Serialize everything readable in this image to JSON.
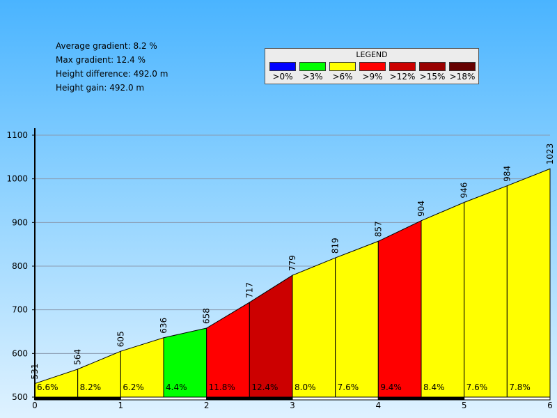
{
  "stats": {
    "avg_gradient": "Average gradient: 8.2 %",
    "max_gradient": "Max gradient: 12.4 %",
    "height_difference": "Height difference: 492.0 m",
    "height_gain": "Height gain: 492.0 m"
  },
  "legend": {
    "title": "LEGEND",
    "items": [
      {
        "label": ">0%",
        "color": "#0000ff"
      },
      {
        "label": ">3%",
        "color": "#00ff00"
      },
      {
        "label": ">6%",
        "color": "#ffff00"
      },
      {
        "label": ">9%",
        "color": "#ff0000"
      },
      {
        "label": ">12%",
        "color": "#cc0000"
      },
      {
        "label": ">15%",
        "color": "#990000"
      },
      {
        "label": ">18%",
        "color": "#660000"
      }
    ]
  },
  "chart_data": {
    "type": "area",
    "xlim": [
      0,
      6
    ],
    "ylim": [
      500,
      1100
    ],
    "x_ticks": [
      "0",
      "1",
      "2",
      "3",
      "4",
      "5",
      "6"
    ],
    "y_ticks": [
      "500",
      "600",
      "700",
      "800",
      "900",
      "1000",
      "1100"
    ],
    "grid": true,
    "x": [
      0,
      0.5,
      1,
      1.5,
      2,
      2.5,
      3,
      3.5,
      4,
      4.5,
      5,
      5.5,
      6
    ],
    "elevation": [
      531,
      564,
      605,
      636,
      658,
      717,
      779,
      819,
      857,
      904,
      946,
      984,
      1023
    ],
    "elevation_labels": [
      "531",
      "564",
      "605",
      "636",
      "658",
      "717",
      "779",
      "819",
      "857",
      "904",
      "946",
      "984",
      "1023"
    ],
    "segment_gradients": [
      "6.6%",
      "8.2%",
      "6.2%",
      "4.4%",
      "11.8%",
      "12.4%",
      "8.0%",
      "7.6%",
      "9.4%",
      "8.4%",
      "7.6%",
      "7.8%"
    ],
    "segment_colors": [
      "#ffff00",
      "#ffff00",
      "#ffff00",
      "#00ff00",
      "#ff0000",
      "#cc0000",
      "#ffff00",
      "#ffff00",
      "#ff0000",
      "#ffff00",
      "#ffff00",
      "#ffff00"
    ]
  }
}
